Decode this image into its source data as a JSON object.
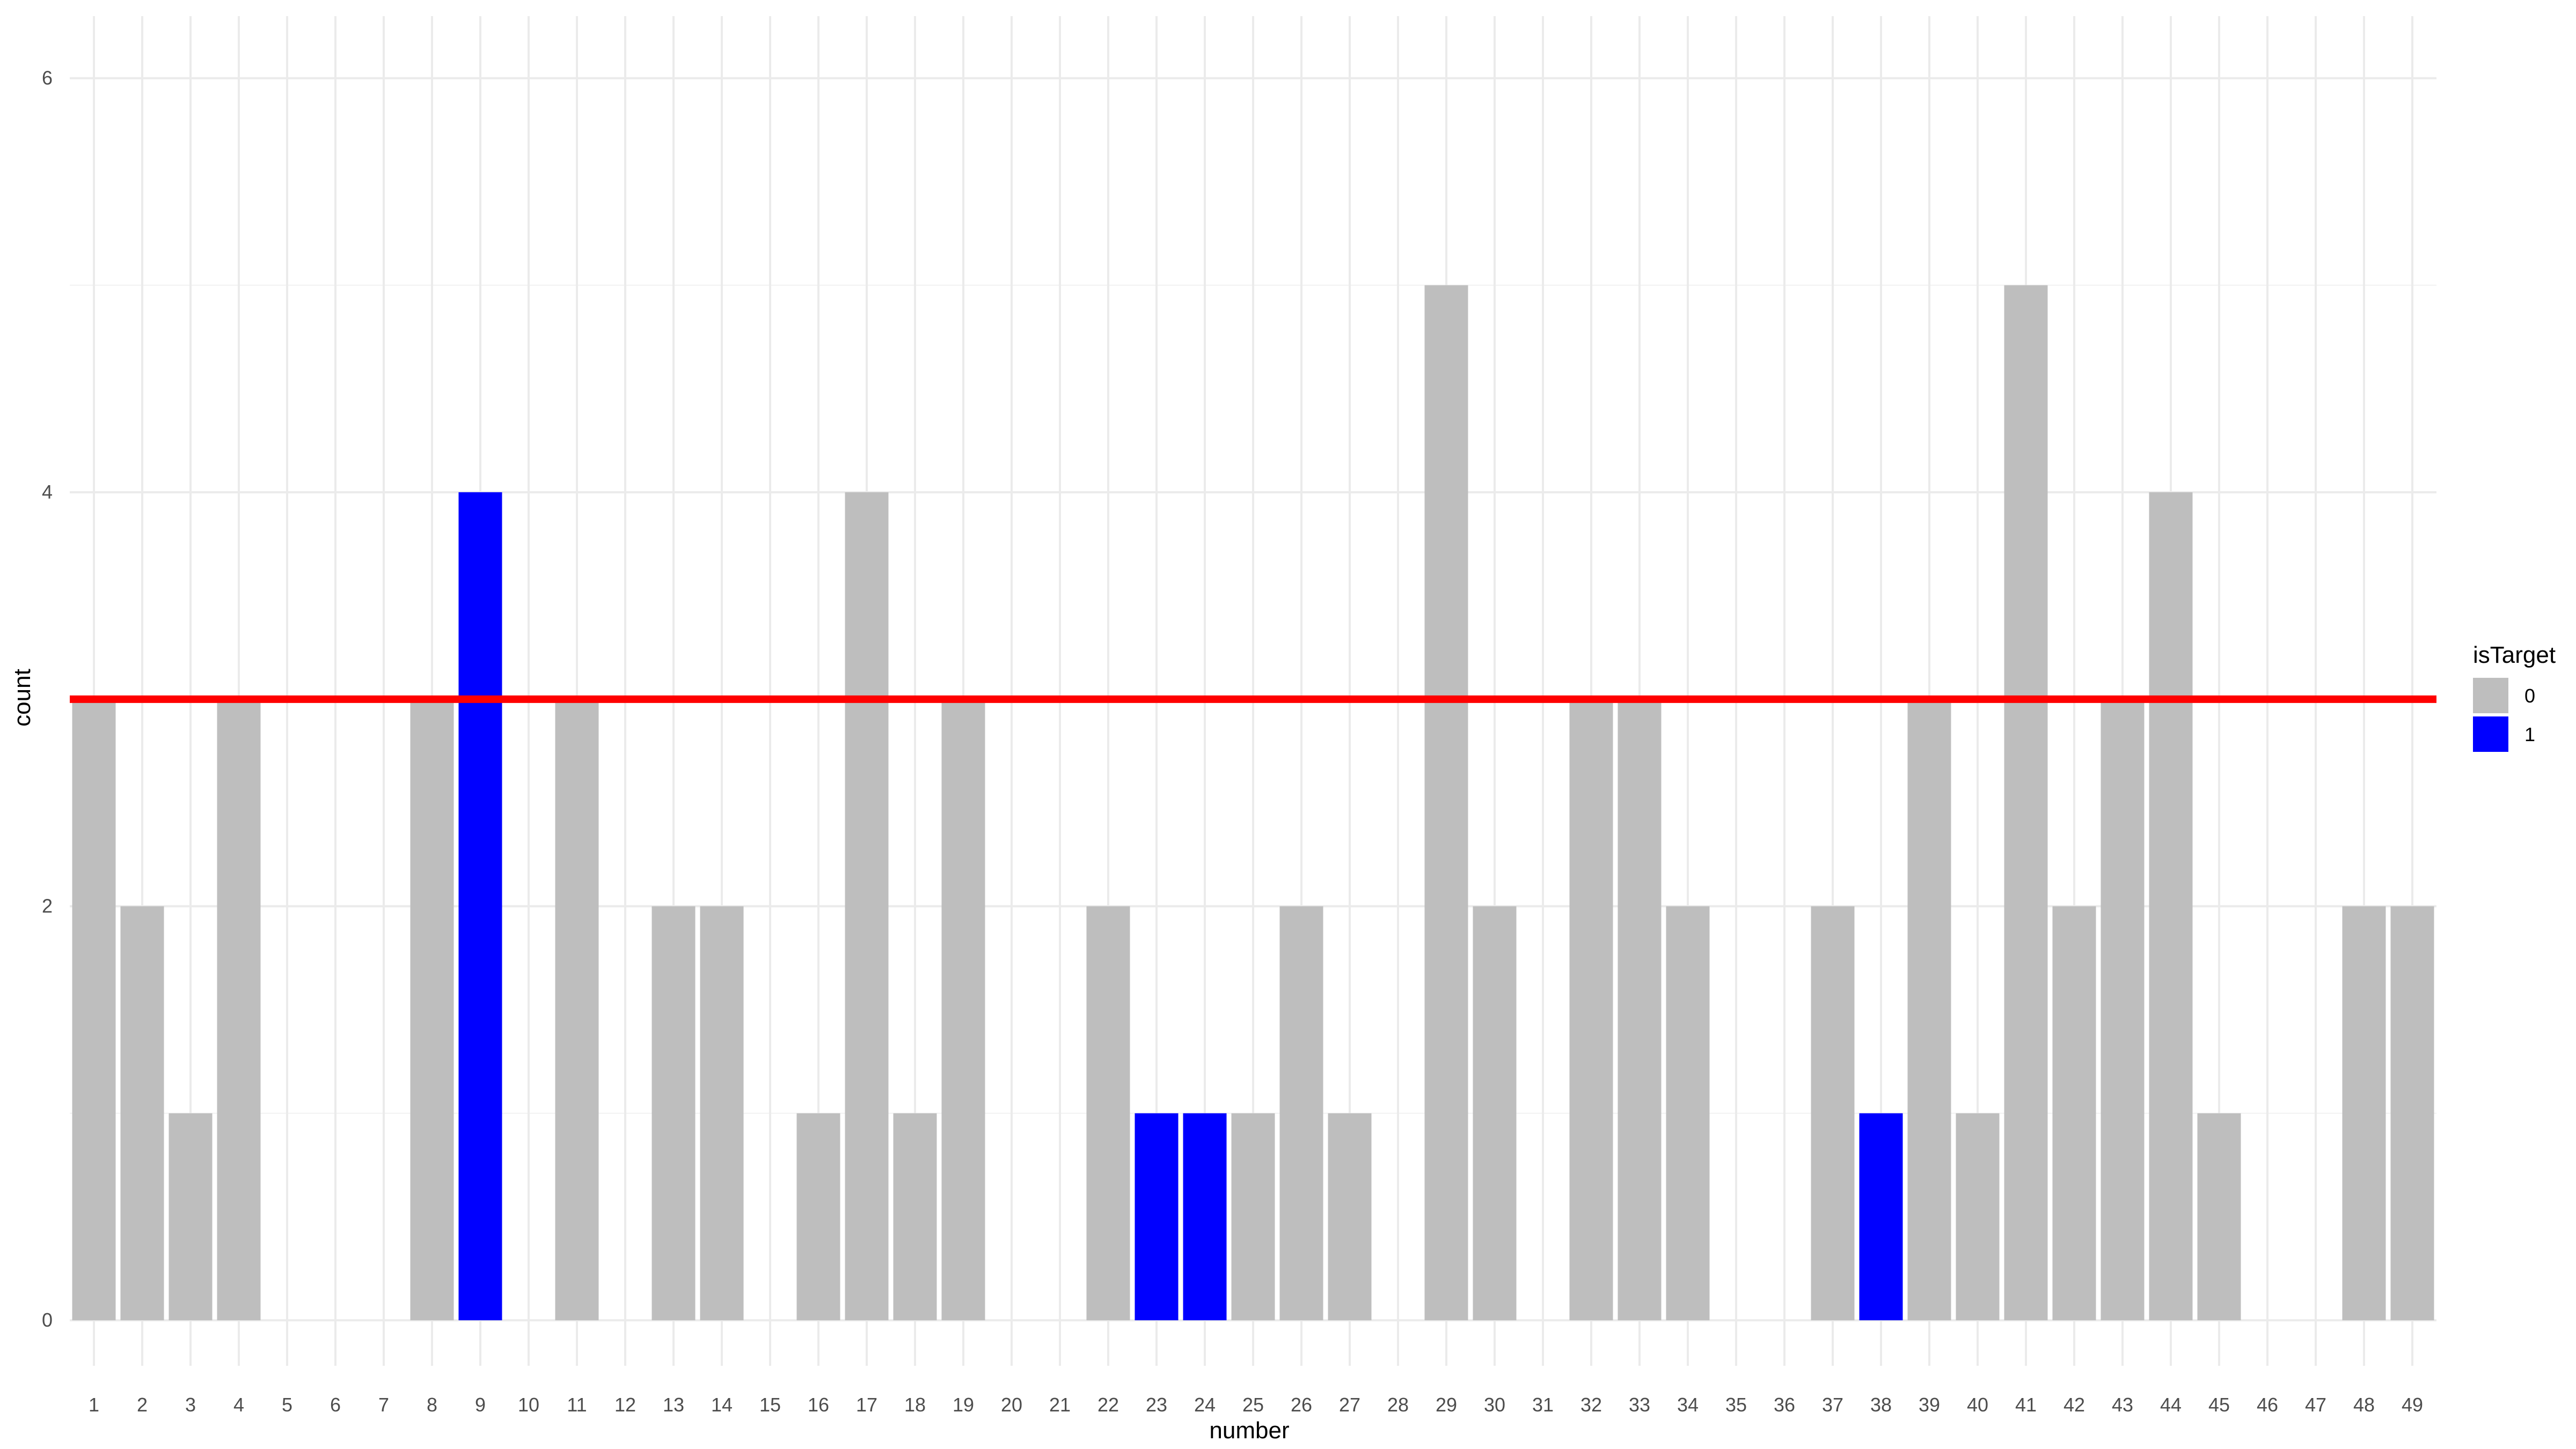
{
  "chart_data": {
    "type": "bar",
    "xlabel": "number",
    "ylabel": "count",
    "ylim": [
      -0.22,
      6.3
    ],
    "yticks": [
      0,
      2,
      4,
      6
    ],
    "y_minor_gridlines": [
      1,
      3,
      5
    ],
    "grid": true,
    "legend_position": "right",
    "legend": {
      "title": "isTarget",
      "entries": [
        {
          "label": "0",
          "color": "#BEBEBE"
        },
        {
          "label": "1",
          "color": "#0000FF"
        }
      ]
    },
    "categories": [
      "1",
      "2",
      "3",
      "4",
      "5",
      "6",
      "7",
      "8",
      "9",
      "10",
      "11",
      "12",
      "13",
      "14",
      "15",
      "16",
      "17",
      "18",
      "19",
      "20",
      "21",
      "22",
      "23",
      "24",
      "25",
      "26",
      "27",
      "28",
      "29",
      "30",
      "31",
      "32",
      "33",
      "34",
      "35",
      "36",
      "37",
      "38",
      "39",
      "40",
      "41",
      "42",
      "43",
      "44",
      "45",
      "46",
      "47",
      "48",
      "49"
    ],
    "values": [
      3,
      2,
      1,
      3,
      0,
      0,
      0,
      3,
      4,
      0,
      3,
      0,
      2,
      2,
      0,
      1,
      4,
      1,
      3,
      0,
      0,
      2,
      1,
      1,
      1,
      2,
      1,
      0,
      5,
      2,
      0,
      3,
      3,
      2,
      0,
      0,
      2,
      1,
      3,
      1,
      5,
      2,
      3,
      4,
      1,
      0,
      0,
      2,
      2
    ],
    "isTarget": [
      0,
      0,
      0,
      0,
      0,
      0,
      0,
      0,
      1,
      0,
      0,
      0,
      0,
      0,
      0,
      0,
      0,
      0,
      0,
      0,
      0,
      0,
      1,
      1,
      0,
      0,
      0,
      0,
      0,
      0,
      0,
      0,
      0,
      0,
      0,
      0,
      0,
      1,
      0,
      0,
      0,
      0,
      0,
      0,
      0,
      0,
      0,
      0,
      0
    ],
    "reference_line": {
      "y": 3,
      "color": "#FF0000"
    }
  }
}
